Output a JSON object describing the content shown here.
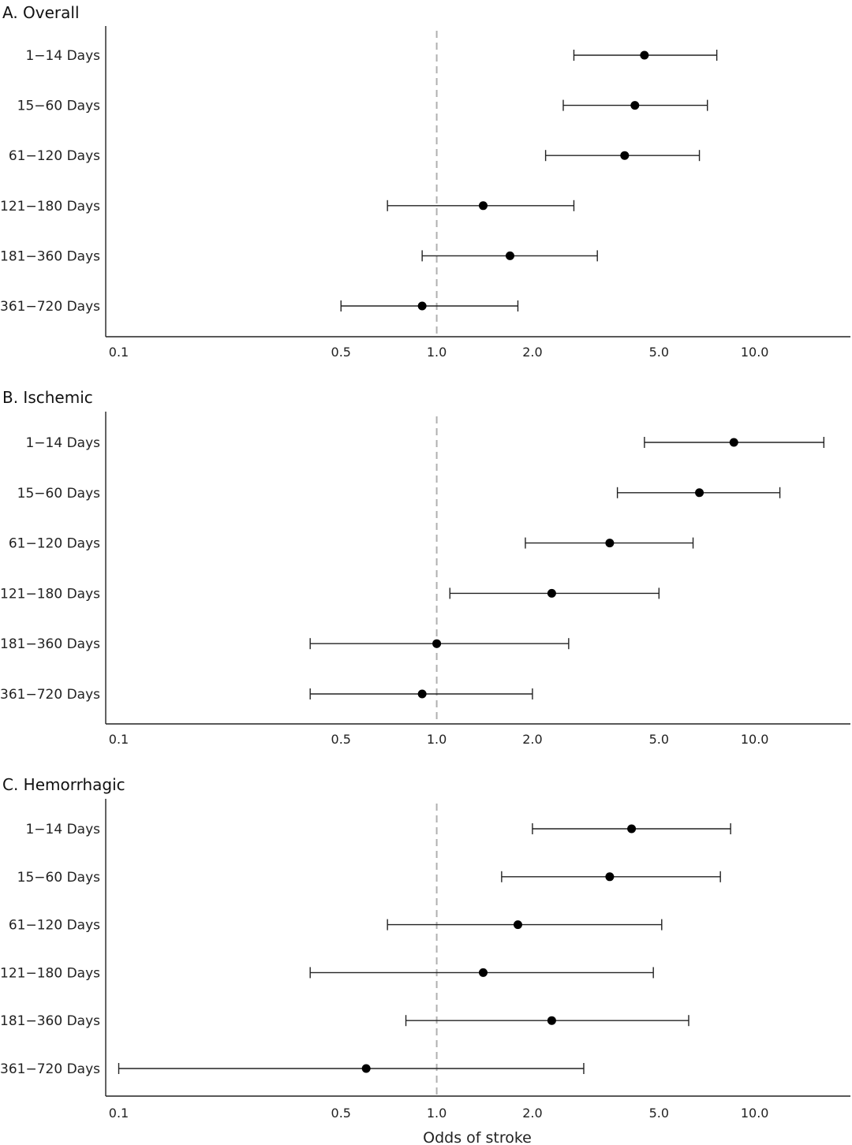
{
  "chart_data": [
    {
      "type": "forest",
      "title": "A. Overall",
      "xscale": "log",
      "xticks": [
        0.1,
        0.5,
        1.0,
        2.0,
        5.0,
        10.0
      ],
      "xtick_labels": [
        "0.1",
        "0.5",
        "1.0",
        "2.0",
        "5.0",
        "10.0"
      ],
      "xlim": [
        0.091,
        20
      ],
      "reference_line": 1.0,
      "rows": [
        {
          "label": "1−14 Days",
          "estimate": 4.5,
          "lower": 2.7,
          "upper": 7.6
        },
        {
          "label": "15−60 Days",
          "estimate": 4.2,
          "lower": 2.5,
          "upper": 7.1
        },
        {
          "label": "61−120 Days",
          "estimate": 3.9,
          "lower": 2.2,
          "upper": 6.7
        },
        {
          "label": "121−180 Days",
          "estimate": 1.4,
          "lower": 0.7,
          "upper": 2.7
        },
        {
          "label": "181−360 Days",
          "estimate": 1.7,
          "lower": 0.9,
          "upper": 3.2
        },
        {
          "label": "361−720 Days",
          "estimate": 0.9,
          "lower": 0.5,
          "upper": 1.8
        }
      ]
    },
    {
      "type": "forest",
      "title": "B. Ischemic",
      "xscale": "log",
      "xticks": [
        0.1,
        0.5,
        1.0,
        2.0,
        5.0,
        10.0
      ],
      "xtick_labels": [
        "0.1",
        "0.5",
        "1.0",
        "2.0",
        "5.0",
        "10.0"
      ],
      "xlim": [
        0.091,
        20
      ],
      "reference_line": 1.0,
      "rows": [
        {
          "label": "1−14 Days",
          "estimate": 8.6,
          "lower": 4.5,
          "upper": 16.5
        },
        {
          "label": "15−60 Days",
          "estimate": 6.7,
          "lower": 3.7,
          "upper": 12.0
        },
        {
          "label": "61−120 Days",
          "estimate": 3.5,
          "lower": 1.9,
          "upper": 6.4
        },
        {
          "label": "121−180 Days",
          "estimate": 2.3,
          "lower": 1.1,
          "upper": 5.0
        },
        {
          "label": "181−360 Days",
          "estimate": 1.0,
          "lower": 0.4,
          "upper": 2.6
        },
        {
          "label": "361−720 Days",
          "estimate": 0.9,
          "lower": 0.4,
          "upper": 2.0
        }
      ]
    },
    {
      "type": "forest",
      "title": "C. Hemorrhagic",
      "xscale": "log",
      "xticks": [
        0.1,
        0.5,
        1.0,
        2.0,
        5.0,
        10.0
      ],
      "xtick_labels": [
        "0.1",
        "0.5",
        "1.0",
        "2.0",
        "5.0",
        "10.0"
      ],
      "xlim": [
        0.091,
        20
      ],
      "reference_line": 1.0,
      "xlabel": "Odds of stroke",
      "rows": [
        {
          "label": "1−14 Days",
          "estimate": 4.1,
          "lower": 2.0,
          "upper": 8.4
        },
        {
          "label": "15−60 Days",
          "estimate": 3.5,
          "lower": 1.6,
          "upper": 7.8
        },
        {
          "label": "61−120 Days",
          "estimate": 1.8,
          "lower": 0.7,
          "upper": 5.1
        },
        {
          "label": "121−180 Days",
          "estimate": 1.4,
          "lower": 0.4,
          "upper": 4.8
        },
        {
          "label": "181−360 Days",
          "estimate": 2.3,
          "lower": 0.8,
          "upper": 6.2
        },
        {
          "label": "361−720 Days",
          "estimate": 0.6,
          "lower": 0.1,
          "upper": 2.9
        }
      ]
    }
  ]
}
